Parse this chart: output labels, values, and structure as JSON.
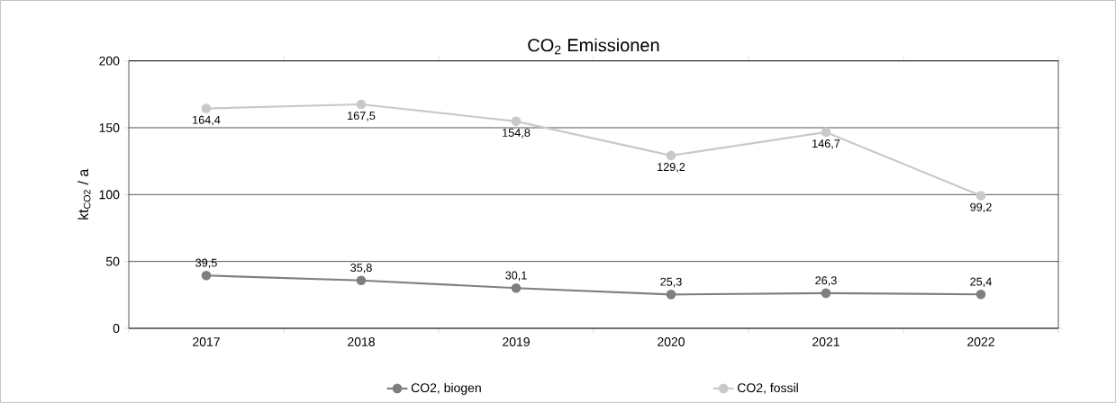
{
  "chart_data": {
    "type": "line",
    "title": "CO$_{2}$ Emissionen",
    "ylabel": "kt$_{CO2}$ / a",
    "categories": [
      "2017",
      "2018",
      "2019",
      "2020",
      "2021",
      "2022"
    ],
    "series": [
      {
        "name": "CO2, biogen",
        "color": "#7f7f7f",
        "values": [
          39.5,
          35.8,
          30.1,
          25.3,
          26.3,
          25.4
        ],
        "value_labels": [
          "39,5",
          "35,8",
          "30,1",
          "25,3",
          "26,3",
          "25,4"
        ]
      },
      {
        "name": "CO2, fossil",
        "color": "#c9c9c9",
        "values": [
          164.4,
          167.5,
          154.8,
          129.2,
          146.7,
          99.2
        ],
        "value_labels": [
          "164,4",
          "167,5",
          "154,8",
          "129,2",
          "146,7",
          "99,2"
        ]
      }
    ],
    "ylim": [
      0,
      200
    ],
    "yticks": [
      0,
      50,
      100,
      150,
      200
    ],
    "grid": "y",
    "legend": "bottom",
    "marker": "circle",
    "line_style": "solid"
  }
}
